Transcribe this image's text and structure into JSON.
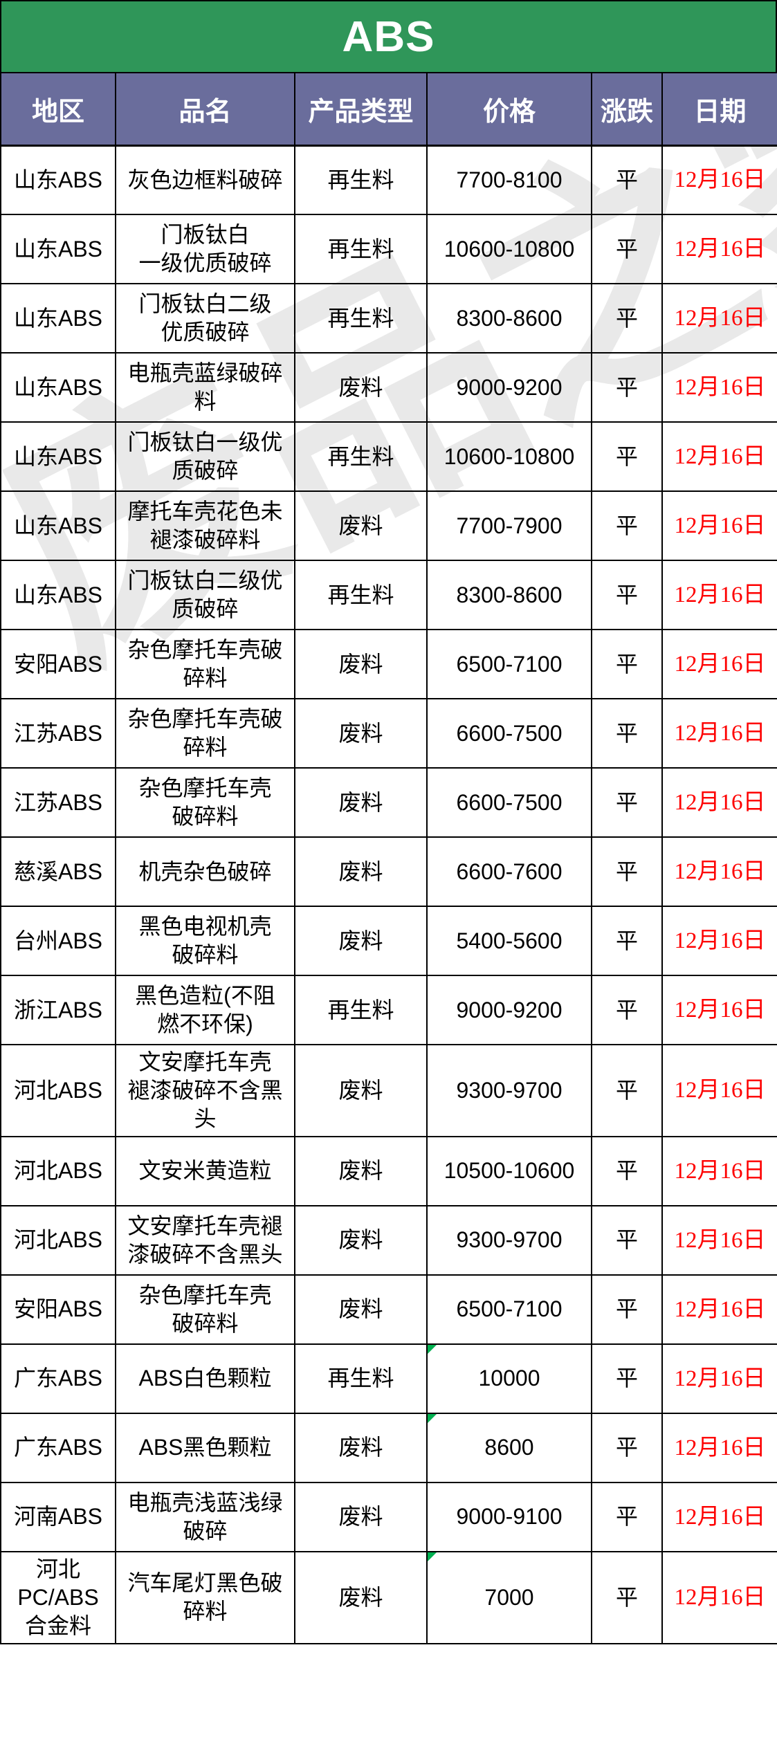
{
  "title": "ABS",
  "watermark": "废品之家",
  "colors": {
    "title_green": "#2F9659",
    "header_purple": "#6A6D9C",
    "date_red": "#FE0000",
    "border_black": "#000000",
    "flag_green": "#00B050"
  },
  "columns": [
    "地区",
    "品名",
    "产品类型",
    "价格",
    "涨跌",
    "日期"
  ],
  "rows": [
    {
      "region": "山东ABS",
      "name": "灰色边框料破碎",
      "type": "再生料",
      "price": "7700-8100",
      "change": "平",
      "date": "12月16日"
    },
    {
      "region": "山东ABS",
      "name": "门板钛白\n一级优质破碎",
      "type": "再生料",
      "price": "10600-10800",
      "change": "平",
      "date": "12月16日"
    },
    {
      "region": "山东ABS",
      "name": "门板钛白二级\n优质破碎",
      "type": "再生料",
      "price": "8300-8600",
      "change": "平",
      "date": "12月16日"
    },
    {
      "region": "山东ABS",
      "name": "电瓶壳蓝绿破碎\n料",
      "type": "废料",
      "price": "9000-9200",
      "change": "平",
      "date": "12月16日"
    },
    {
      "region": "山东ABS",
      "name": "门板钛白一级优\n质破碎",
      "type": "再生料",
      "price": "10600-10800",
      "change": "平",
      "date": "12月16日"
    },
    {
      "region": "山东ABS",
      "name": "摩托车壳花色未\n褪漆破碎料",
      "type": "废料",
      "price": "7700-7900",
      "change": "平",
      "date": "12月16日"
    },
    {
      "region": "山东ABS",
      "name": "门板钛白二级优\n质破碎",
      "type": "再生料",
      "price": "8300-8600",
      "change": "平",
      "date": "12月16日"
    },
    {
      "region": "安阳ABS",
      "name": "杂色摩托车壳破\n碎料",
      "type": "废料",
      "price": "6500-7100",
      "change": "平",
      "date": "12月16日"
    },
    {
      "region": "江苏ABS",
      "name": "杂色摩托车壳破\n碎料",
      "type": "废料",
      "price": "6600-7500",
      "change": "平",
      "date": "12月16日"
    },
    {
      "region": "江苏ABS",
      "name": "杂色摩托车壳\n破碎料",
      "type": "废料",
      "price": "6600-7500",
      "change": "平",
      "date": "12月16日"
    },
    {
      "region": "慈溪ABS",
      "name": "机壳杂色破碎",
      "type": "废料",
      "price": "6600-7600",
      "change": "平",
      "date": "12月16日"
    },
    {
      "region": "台州ABS",
      "name": "黑色电视机壳\n破碎料",
      "type": "废料",
      "price": "5400-5600",
      "change": "平",
      "date": "12月16日"
    },
    {
      "region": "浙江ABS",
      "name": "黑色造粒(不阻\n燃不环保)",
      "type": "再生料",
      "price": "9000-9200",
      "change": "平",
      "date": "12月16日"
    },
    {
      "region": "河北ABS",
      "name": "文安摩托车壳\n褪漆破碎不含黑\n头",
      "type": "废料",
      "price": "9300-9700",
      "change": "平",
      "date": "12月16日"
    },
    {
      "region": "河北ABS",
      "name": "文安米黄造粒",
      "type": "废料",
      "price": "10500-10600",
      "change": "平",
      "date": "12月16日"
    },
    {
      "region": "河北ABS",
      "name": "文安摩托车壳褪\n漆破碎不含黑头",
      "type": "废料",
      "price": "9300-9700",
      "change": "平",
      "date": "12月16日"
    },
    {
      "region": "安阳ABS",
      "name": "杂色摩托车壳\n破碎料",
      "type": "废料",
      "price": "6500-7100",
      "change": "平",
      "date": "12月16日"
    },
    {
      "region": "广东ABS",
      "name": "ABS白色颗粒",
      "type": "再生料",
      "price": "10000",
      "change": "平",
      "date": "12月16日",
      "flag": true
    },
    {
      "region": "广东ABS",
      "name": "ABS黑色颗粒",
      "type": "废料",
      "price": "8600",
      "change": "平",
      "date": "12月16日",
      "flag": true
    },
    {
      "region": "河南ABS",
      "name": "电瓶壳浅蓝浅绿\n破碎",
      "type": "废料",
      "price": "9000-9100",
      "change": "平",
      "date": "12月16日"
    },
    {
      "region": "河北\nPC/ABS\n合金料",
      "name": "汽车尾灯黑色破\n碎料",
      "type": "废料",
      "price": "7000",
      "change": "平",
      "date": "12月16日",
      "flag": true
    }
  ]
}
